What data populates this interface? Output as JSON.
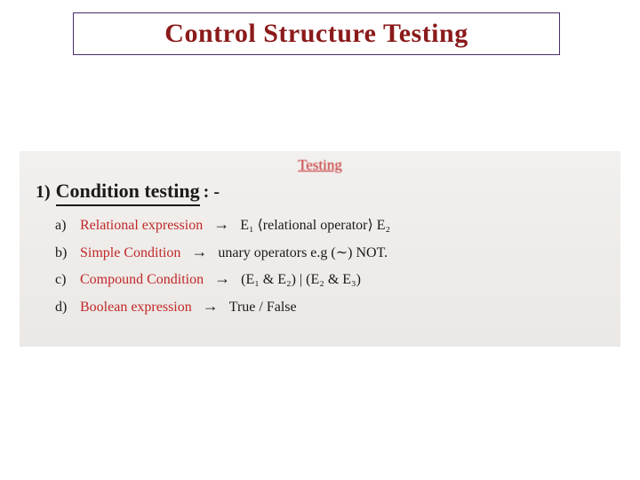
{
  "title": "Control Structure Testing",
  "colors": {
    "title_text": "#8b1a1a",
    "title_border": "#4a2c6b",
    "whiteboard_bg_top": "#f2f0ee",
    "whiteboard_bg_bottom": "#ebe8e5",
    "handwriting_red": "#c02828",
    "handwriting_black": "#1a1a1a",
    "page_bg": "#ffffff"
  },
  "whiteboard": {
    "top_word": "Testing",
    "heading_number": "1)",
    "heading": "Condition testing",
    "heading_suffix": ": -",
    "items": [
      {
        "letter": "a)",
        "term": "Relational expression",
        "arrow": "→",
        "detail": "E₁ ⟨relational operator⟩ E₂"
      },
      {
        "letter": "b)",
        "term": "Simple Condition",
        "arrow": "→",
        "detail": "unary operators e.g (∼) NOT."
      },
      {
        "letter": "c)",
        "term": "Compound Condition",
        "arrow": "→",
        "detail": "(E₁ & E₂) | (E₂ & E₃)"
      },
      {
        "letter": "d)",
        "term": "Boolean expression",
        "arrow": "→",
        "detail": "True / False"
      }
    ]
  }
}
